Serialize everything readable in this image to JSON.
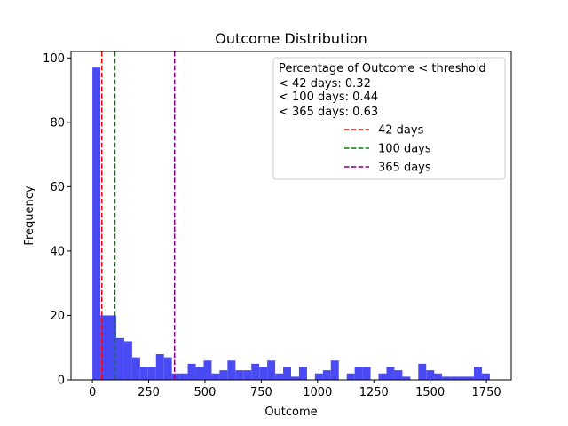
{
  "chart_data": {
    "type": "bar",
    "title": "Outcome Distribution",
    "xlabel": "Outcome",
    "ylabel": "Frequency",
    "xlim": [
      -95,
      1860
    ],
    "ylim": [
      0,
      102
    ],
    "xticks": [
      0,
      250,
      500,
      750,
      1000,
      1250,
      1500,
      1750
    ],
    "yticks": [
      0,
      20,
      40,
      60,
      80,
      100
    ],
    "bar_color": "#4a4af5",
    "bin_width": 35.3,
    "bin_start": 0,
    "counts": [
      97,
      20,
      20,
      13,
      12,
      7,
      4,
      4,
      8,
      7,
      2,
      2,
      5,
      4,
      6,
      2,
      3,
      6,
      3,
      3,
      5,
      4,
      6,
      2,
      4,
      1,
      4,
      0,
      2,
      3,
      6,
      0,
      2,
      4,
      4,
      0,
      2,
      4,
      3,
      1,
      0,
      5,
      3,
      2,
      1,
      1,
      1,
      1,
      4,
      2
    ],
    "thresholds": [
      {
        "value": 42,
        "label": "42 days",
        "color": "#ff0000"
      },
      {
        "value": 100,
        "label": "100 days",
        "color": "#008000"
      },
      {
        "value": 365,
        "label": "365 days",
        "color": "#800080"
      }
    ],
    "legend": {
      "placement": "top-right",
      "header": "Percentage of Outcome < threshold",
      "lines": [
        "< 42 days: 0.32",
        "< 100 days: 0.44",
        "< 365 days: 0.63"
      ]
    }
  }
}
